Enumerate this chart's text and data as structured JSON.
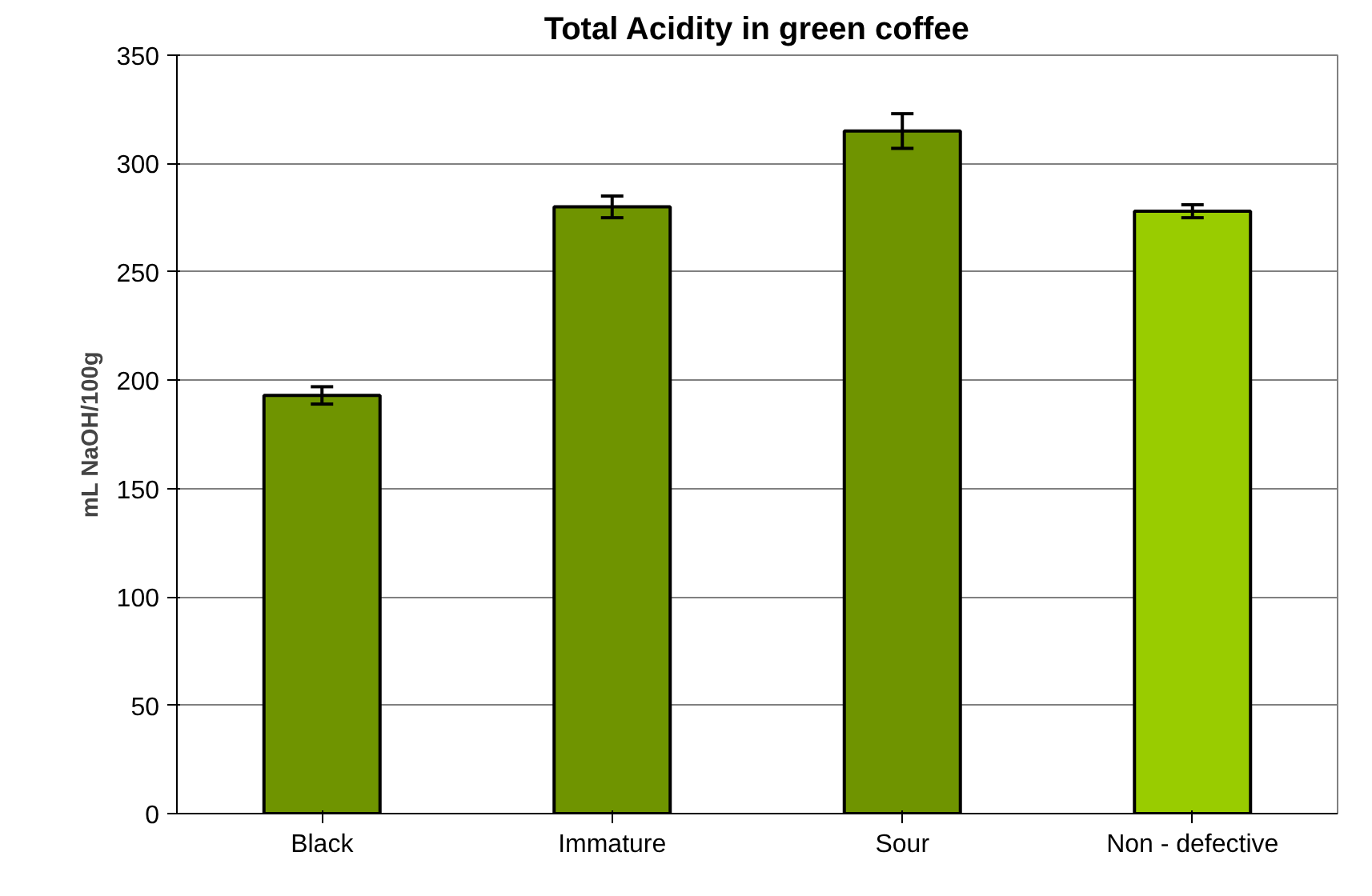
{
  "chart_data": {
    "type": "bar",
    "title": "Total Acidity in green coffee",
    "ylabel": "mL NaOH/100g",
    "categories": [
      "Black",
      "Immature",
      "Sour",
      "Non - defective"
    ],
    "values": [
      193,
      280,
      315,
      278
    ],
    "errors": [
      4,
      5,
      8,
      3
    ],
    "colors": [
      "#6f9400",
      "#6f9400",
      "#6f9400",
      "#99cc00"
    ],
    "ylim": [
      0,
      350
    ],
    "yticks": [
      0,
      50,
      100,
      150,
      200,
      250,
      300,
      350
    ],
    "grid": "y"
  }
}
